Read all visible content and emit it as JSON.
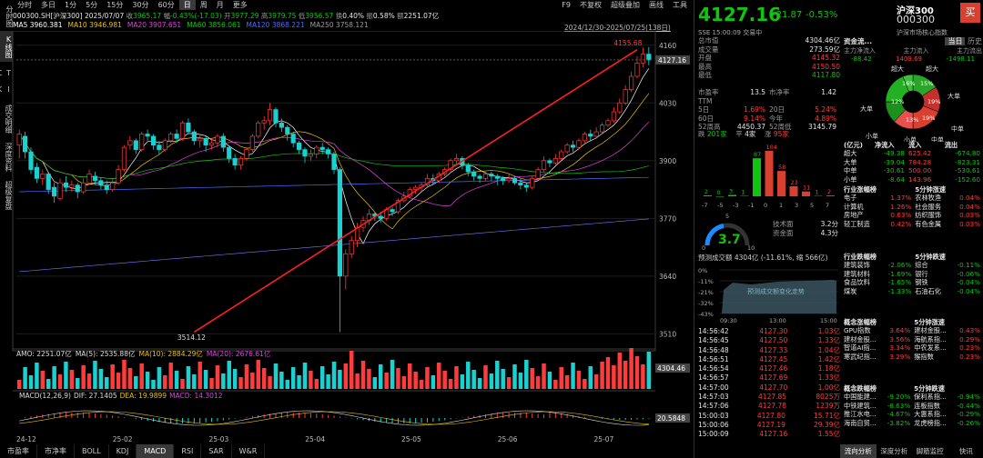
{
  "topbar": {
    "tabs": [
      "分时",
      "多日",
      "1分",
      "5分",
      "15分",
      "30分",
      "60分",
      "日",
      "周",
      "月",
      "更多"
    ],
    "active": "日",
    "right": [
      "F9",
      "不复权",
      "超级叠加",
      "画线",
      "工具"
    ]
  },
  "vtabs": [
    "分时图",
    "K线图",
    "T I C K",
    "成交明细",
    "深度资料",
    "超级复盘"
  ],
  "info": {
    "code": "000300.SH[沪深300]",
    "date": "2025/07/07",
    "close_label": "收",
    "close": "3965.17",
    "chg_label": "幅",
    "chg": "-0.43%(-17.03)",
    "open_label": "开",
    "open": "3977.29",
    "high_label": "高",
    "high": "3979.75",
    "low_label": "低",
    "low": "3956.57",
    "turnover_label": "换",
    "turnover": "0.40%",
    "amp_label": "振",
    "amp": "0.58%",
    "amount_label": "额",
    "amount": "2251.07亿"
  },
  "ma": [
    {
      "label": "MA5",
      "value": "3960.381",
      "color": "#ffffff"
    },
    {
      "label": "MA10",
      "value": "3946.981",
      "color": "#e8c200"
    },
    {
      "label": "MA20",
      "value": "3907.651",
      "color": "#e040e0"
    },
    {
      "label": "MA60",
      "value": "3856.061",
      "color": "#12c312"
    },
    {
      "label": "MA120",
      "value": "3868.221",
      "color": "#4a6cff"
    },
    {
      "label": "MA250",
      "value": "3758.121",
      "color": "#9a9a9a"
    }
  ],
  "range": "2024/12/30-2025/07/25(138日)",
  "chart_data": {
    "type": "candlestick",
    "ylim": [
      3480,
      4180
    ],
    "yticks": [
      4160,
      4030,
      3900,
      3770,
      3640,
      3510
    ],
    "xticks": [
      "24-12",
      "25-02",
      "25-03",
      "25-04",
      "25-05",
      "25-06",
      "25-07"
    ],
    "high_mark": "4155.68",
    "low_mark": "3514.12",
    "last": "4127.16",
    "candles": [
      [
        3935,
        3960,
        3905,
        3970
      ],
      [
        3955,
        3920,
        3905,
        3965
      ],
      [
        3920,
        3880,
        3870,
        3930
      ],
      [
        3885,
        3860,
        3850,
        3895
      ],
      [
        3860,
        3870,
        3845,
        3880
      ],
      [
        3870,
        3835,
        3825,
        3875
      ],
      [
        3840,
        3820,
        3805,
        3850
      ],
      [
        3815,
        3850,
        3810,
        3860
      ],
      [
        3850,
        3840,
        3830,
        3865
      ],
      [
        3840,
        3845,
        3830,
        3855
      ],
      [
        3845,
        3830,
        3815,
        3850
      ],
      [
        3830,
        3850,
        3825,
        3860
      ],
      [
        3850,
        3870,
        3845,
        3880
      ],
      [
        3865,
        3855,
        3845,
        3875
      ],
      [
        3855,
        3845,
        3835,
        3862
      ],
      [
        3845,
        3835,
        3825,
        3855
      ],
      [
        3835,
        3850,
        3830,
        3858
      ],
      [
        3850,
        3880,
        3845,
        3890
      ],
      [
        3880,
        3930,
        3875,
        3935
      ],
      [
        3935,
        3945,
        3925,
        3955
      ],
      [
        3945,
        3925,
        3915,
        3950
      ],
      [
        3925,
        3960,
        3920,
        3965
      ],
      [
        3960,
        3955,
        3945,
        3970
      ],
      [
        3955,
        3935,
        3925,
        3960
      ],
      [
        3935,
        3925,
        3915,
        3945
      ],
      [
        3925,
        3945,
        3920,
        3950
      ],
      [
        3945,
        3960,
        3940,
        3965
      ],
      [
        3960,
        3950,
        3940,
        3970
      ],
      [
        3950,
        3985,
        3945,
        3990
      ],
      [
        3985,
        3965,
        3960,
        3995
      ],
      [
        3965,
        3945,
        3935,
        3970
      ],
      [
        3945,
        3950,
        3930,
        3960
      ],
      [
        3950,
        3935,
        3920,
        3955
      ],
      [
        3935,
        3940,
        3925,
        3950
      ],
      [
        3940,
        3955,
        3930,
        3960
      ],
      [
        3955,
        3930,
        3920,
        3962
      ],
      [
        3930,
        3905,
        3895,
        3935
      ],
      [
        3905,
        3890,
        3880,
        3915
      ],
      [
        3890,
        3905,
        3880,
        3910
      ],
      [
        3905,
        3925,
        3900,
        3930
      ],
      [
        3925,
        3955,
        3920,
        3960
      ],
      [
        3955,
        3985,
        3950,
        3990
      ],
      [
        3985,
        3990,
        3970,
        4000
      ],
      [
        3990,
        4015,
        3980,
        4030
      ],
      [
        4015,
        3985,
        3975,
        4020
      ],
      [
        3985,
        3975,
        3965,
        3995
      ],
      [
        3975,
        3960,
        3945,
        3980
      ],
      [
        3960,
        3940,
        3930,
        3965
      ],
      [
        3940,
        3925,
        3915,
        3945
      ],
      [
        3925,
        3910,
        3895,
        3930
      ],
      [
        3910,
        3915,
        3900,
        3925
      ],
      [
        3915,
        3930,
        3905,
        3935
      ],
      [
        3930,
        3925,
        3915,
        3940
      ],
      [
        3925,
        3915,
        3905,
        3930
      ],
      [
        3915,
        3880,
        3870,
        3920
      ],
      [
        3880,
        3640,
        3514,
        3885
      ],
      [
        3640,
        3690,
        3610,
        3700
      ],
      [
        3690,
        3720,
        3680,
        3730
      ],
      [
        3720,
        3750,
        3705,
        3760
      ],
      [
        3750,
        3765,
        3740,
        3775
      ],
      [
        3765,
        3780,
        3755,
        3790
      ],
      [
        3780,
        3775,
        3765,
        3785
      ],
      [
        3775,
        3770,
        3760,
        3785
      ],
      [
        3770,
        3790,
        3765,
        3795
      ],
      [
        3790,
        3785,
        3775,
        3795
      ],
      [
        3785,
        3810,
        3780,
        3815
      ],
      [
        3810,
        3820,
        3805,
        3830
      ],
      [
        3820,
        3835,
        3815,
        3840
      ],
      [
        3835,
        3840,
        3825,
        3845
      ],
      [
        3840,
        3845,
        3830,
        3850
      ],
      [
        3845,
        3860,
        3840,
        3870
      ],
      [
        3860,
        3855,
        3845,
        3870
      ],
      [
        3855,
        3870,
        3850,
        3875
      ],
      [
        3870,
        3880,
        3865,
        3885
      ],
      [
        3880,
        3900,
        3875,
        3905
      ],
      [
        3900,
        3905,
        3890,
        3915
      ],
      [
        3905,
        3890,
        3880,
        3910
      ],
      [
        3890,
        3875,
        3865,
        3895
      ],
      [
        3875,
        3865,
        3855,
        3880
      ],
      [
        3865,
        3860,
        3850,
        3870
      ],
      [
        3860,
        3870,
        3855,
        3875
      ],
      [
        3870,
        3865,
        3855,
        3875
      ],
      [
        3865,
        3860,
        3845,
        3870
      ],
      [
        3860,
        3855,
        3845,
        3865
      ],
      [
        3855,
        3860,
        3850,
        3870
      ],
      [
        3860,
        3850,
        3845,
        3865
      ],
      [
        3850,
        3845,
        3835,
        3860
      ],
      [
        3845,
        3840,
        3830,
        3850
      ],
      [
        3840,
        3860,
        3835,
        3865
      ],
      [
        3860,
        3880,
        3855,
        3885
      ],
      [
        3880,
        3900,
        3875,
        3910
      ],
      [
        3900,
        3895,
        3885,
        3905
      ],
      [
        3895,
        3905,
        3890,
        3915
      ],
      [
        3905,
        3920,
        3900,
        3925
      ],
      [
        3920,
        3935,
        3915,
        3940
      ],
      [
        3935,
        3930,
        3920,
        3945
      ],
      [
        3930,
        3945,
        3925,
        3950
      ],
      [
        3945,
        3960,
        3940,
        3965
      ],
      [
        3960,
        3955,
        3945,
        3970
      ],
      [
        3955,
        3965,
        3950,
        3975
      ],
      [
        3965,
        3980,
        3960,
        3985
      ],
      [
        3980,
        3990,
        3975,
        3995
      ],
      [
        3990,
        4010,
        3985,
        4020
      ],
      [
        4010,
        4030,
        4005,
        4040
      ],
      [
        4030,
        4060,
        4025,
        4070
      ],
      [
        4060,
        4090,
        4055,
        4100
      ],
      [
        4090,
        4120,
        4085,
        4135
      ],
      [
        4120,
        4140,
        4110,
        4155
      ],
      [
        4140,
        4127,
        4115,
        4156
      ]
    ],
    "trendline": {
      "from": [
        30,
        3514
      ],
      "to": [
        106,
        4150
      ]
    }
  },
  "volume": {
    "label": "AMO: 2251.07亿",
    "ma5": "MA(5): 2535.88亿",
    "ma10": "MA(10): 2884.29亿",
    "ma20": "MA(20): 2676.61亿",
    "last": "4304.46"
  },
  "macd": {
    "label": "MACD(12,26,9)",
    "dif": "DIF: 27.1405",
    "dea": "DEA: 19.9899",
    "macd": "MACD: 14.3012",
    "last": "20.5848"
  },
  "bottom_tabs": [
    "市盈率",
    "市净率",
    "BOLL",
    "KDJ",
    "MACD",
    "RSI",
    "SAR",
    "W&R"
  ],
  "bottom_active": "MACD",
  "rp": {
    "price": "4127.16",
    "chg": "-21.87",
    "pct": "-0.53%",
    "name": "沪深300",
    "code": "000300",
    "buy": "买",
    "sse": "SSE  15:00:09  交易中",
    "desc": "沪深市场核心指数",
    "stats": [
      [
        "总市值",
        "4304.46亿"
      ],
      [
        "成交量",
        "273.59亿"
      ],
      [
        "开盘",
        "4145.32"
      ],
      [
        "最高",
        "4150.50"
      ],
      [
        "最低",
        "4117.80"
      ]
    ],
    "stats2": [
      [
        "市盈率TTM",
        "13.5",
        "市净率",
        "1.42"
      ],
      [
        "5日",
        "1.69%",
        "20日",
        "5.24%"
      ],
      [
        "60日",
        "9.14%",
        "今年",
        "4.89%"
      ],
      [
        "52周高",
        "4450.37",
        "52周低",
        "3145.79"
      ]
    ],
    "updown": {
      "rise_label": "跌",
      "rise": "201家",
      "flat_label": "平",
      "flat": "4家",
      "fall_label": "涨",
      "fall": "95家"
    },
    "dist": {
      "labels": [
        "2",
        "0",
        "3",
        "1",
        "87",
        "104",
        "58",
        "23",
        "11",
        "1",
        "2"
      ],
      "x": [
        "-7",
        "-5",
        "-3",
        "-1",
        "0",
        "1",
        "3",
        "5",
        "7"
      ]
    },
    "gauge": {
      "value": "3.7",
      "lo": "0",
      "mid": "5",
      "hi": "10",
      "tech": "技术面",
      "tech_v": "3.2分",
      "fund": "资金面",
      "fund_v": "4.3分"
    },
    "flow": {
      "title": "资金流...",
      "tab1": "当日",
      "tab2": "历史",
      "h1": "主力净流入",
      "h2": "主力流入",
      "h3": "主力流出",
      "v1": "-88.42",
      "v2": "1409.69",
      "v3": "-1498.11",
      "pie": [
        "16%",
        "15%",
        "19%",
        "19%",
        "13%",
        "12%"
      ],
      "pie_labels": [
        "超大",
        "超大",
        "大单",
        "大单",
        "小单",
        "中单",
        "小单",
        "中单"
      ]
    },
    "flowtbl": {
      "head": [
        "(亿元)",
        "净流入",
        "流入",
        "流出"
      ],
      "rows": [
        [
          "超大",
          "-49.38",
          "625.42",
          "-674.80"
        ],
        [
          "大单",
          "-39.04",
          "784.28",
          "-823.31"
        ],
        [
          "中单",
          "-30.61",
          "500.00",
          "-530.61"
        ],
        [
          "小单",
          "-8.64",
          "143.96",
          "-152.60"
        ]
      ]
    },
    "ind": {
      "h1": "行业涨幅榜",
      "h2": "5分钟涨速",
      "rows": [
        [
          "电子",
          "1.37%",
          "农林牧渔",
          "0.04%"
        ],
        [
          "计算机",
          "1.26%",
          "社会服务",
          "0.04%"
        ],
        [
          "房地产",
          "0.63%",
          "纺织服饰",
          "0.03%"
        ],
        [
          "轻工制造",
          "0.42%",
          "有色金属",
          "0.03%"
        ]
      ]
    },
    "est": {
      "label": "预测成交额 4304亿 (-11.61%, 缩 566亿)",
      "yt": [
        "0%",
        "-11%",
        "-21%",
        "-32%",
        "-43%"
      ],
      "xt": [
        "09:30",
        "13:00",
        "15:00"
      ],
      "watermark": "预测成交额变化走势"
    },
    "ind2": {
      "h1": "行业跌幅榜",
      "h2": "5分钟跌速",
      "rows": [
        [
          "建筑装饰",
          "-2.06%",
          "综合",
          "-0.11%"
        ],
        [
          "建筑材料",
          "-1.69%",
          "银行",
          "-0.06%"
        ],
        [
          "食品饮料",
          "-1.65%",
          "钢铁",
          "-0.04%"
        ],
        [
          "煤炭",
          "-1.33%",
          "石油石化",
          "-0.04%"
        ]
      ]
    },
    "ticks": [
      [
        "14:56:42",
        "4127.30",
        "1.03亿"
      ],
      [
        "14:56:45",
        "4127.50",
        "1.33亿"
      ],
      [
        "14:56:48",
        "4127.33",
        "1.04亿"
      ],
      [
        "14:56:51",
        "4127.45",
        "1.42亿"
      ],
      [
        "14:56:54",
        "4127.46",
        "1.18亿"
      ],
      [
        "14:56:57",
        "4127.69",
        "1.33亿"
      ],
      [
        "14:57:00",
        "4127.70",
        "1.00亿"
      ],
      [
        "14:57:03",
        "4127.85",
        "8025万"
      ],
      [
        "14:57:06",
        "4127.78",
        "1239万"
      ],
      [
        "15:00:03",
        "4127.80",
        "15.71亿"
      ],
      [
        "15:00:06",
        "4127.19",
        "29.39亿"
      ],
      [
        "15:00:09",
        "4127.16",
        "1.55亿"
      ]
    ],
    "concept": {
      "h1": "概念涨幅榜",
      "h2": "5分钟涨速",
      "rows": [
        [
          "GPU指数",
          "3.64%",
          "建材金股...",
          "0.43%"
        ],
        [
          "建材金股...",
          "3.56%",
          "海航系指...",
          "0.29%"
        ],
        [
          "智道AI指...",
          "3.34%",
          "中农发系...",
          "0.23%"
        ],
        [
          "寒武纪指...",
          "3.29%",
          "猴指数",
          "0.23%"
        ]
      ]
    },
    "concept2": {
      "h1": "概念跌幅榜",
      "h2": "5分钟跌速",
      "rows": [
        [
          "中国能建...",
          "-9.20%",
          "保利系指...",
          "-0.94%"
        ],
        [
          "中铁建筑...",
          "-8.63%",
          "连板指数",
          "-0.44%"
        ],
        [
          "推江水电...",
          "-4.67%",
          "大惠系指...",
          "-0.29%"
        ],
        [
          "海南自贸...",
          "-3.82%",
          "龙虎榜指...",
          "-0.26%"
        ]
      ]
    },
    "rbottom": [
      "流向分析",
      "深度分析",
      "脚筋监控",
      "快讯"
    ]
  }
}
